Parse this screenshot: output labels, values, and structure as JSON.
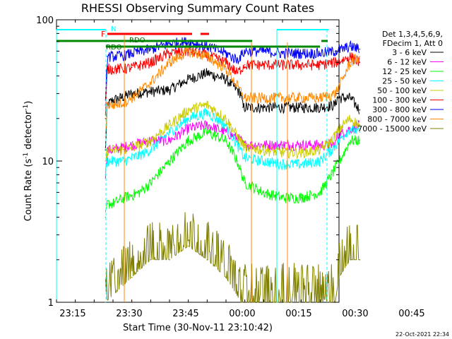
{
  "chart_data": {
    "type": "line",
    "title": "RHESSI Observing Summary Count Rates",
    "xlabel": "Start Time (30-Nov-11 23:10:42)",
    "ylabel_main": "Count Rate (s",
    "ylabel_sup1": "-1",
    "ylabel_mid": " detector",
    "ylabel_sup2": "-1",
    "ylabel_end": ")",
    "yscale": "log",
    "ylim": [
      1,
      100
    ],
    "xlim_minutes": [
      0,
      75
    ],
    "x_tick_labels": [
      {
        "label": "23:15",
        "minute": 4.3
      },
      {
        "label": "23:30",
        "minute": 19.3
      },
      {
        "label": "23:45",
        "minute": 34.3
      },
      {
        "label": "00:00",
        "minute": 49.3
      },
      {
        "label": "00:15",
        "minute": 64.3
      },
      {
        "label": "00:30",
        "minute": 79.3
      },
      {
        "label": "00:45",
        "minute": 94.3
      }
    ],
    "y_tick_labels": [
      {
        "label": "1",
        "value": 1
      },
      {
        "label": "10",
        "value": 10
      },
      {
        "label": "100",
        "value": 100
      }
    ],
    "legend_header": [
      "Det 1,3,4,5,6,9,",
      "FDecim 1, Att 0"
    ],
    "legend_position": "right",
    "series": [
      {
        "name": "3 - 6 keV",
        "color": "#000000",
        "x": [
          13,
          13.5,
          15,
          17,
          20,
          25,
          30,
          35,
          40,
          45,
          49,
          49.5,
          55,
          60,
          65,
          70,
          74,
          74.5,
          78,
          80.5
        ],
        "values": [
          12,
          25,
          27,
          28,
          30,
          31,
          32,
          38,
          42,
          38,
          30,
          24,
          24,
          24,
          24,
          24,
          25,
          28,
          28,
          23
        ]
      },
      {
        "name": "6 - 12 keV",
        "color": "#ff00ff",
        "x": [
          13,
          13.5,
          15,
          20,
          25,
          30,
          35,
          40,
          45,
          49,
          49.5,
          55,
          60,
          65,
          70,
          74,
          74.5,
          78,
          80.5
        ],
        "values": [
          8,
          12,
          12,
          13,
          14,
          14,
          17,
          18,
          16,
          14,
          13,
          13,
          13,
          13,
          13,
          13,
          15,
          17,
          18
        ]
      },
      {
        "name": "12 - 25 keV",
        "color": "#00ff00",
        "x": [
          13,
          13.5,
          15,
          18,
          22,
          25,
          30,
          35,
          40,
          45,
          48,
          50,
          55,
          60,
          65,
          70,
          73,
          76,
          78,
          80.5
        ],
        "values": [
          4,
          5,
          5,
          5.5,
          6,
          7,
          10,
          14,
          16,
          14,
          10,
          7,
          6,
          5.5,
          5.5,
          6,
          8,
          11,
          14,
          14
        ]
      },
      {
        "name": "25 - 50 keV",
        "color": "#00ffff",
        "x": [
          13,
          13.5,
          15,
          18,
          22,
          25,
          30,
          35,
          40,
          45,
          48,
          50,
          55,
          60,
          65,
          70,
          73,
          76,
          78,
          80.5
        ],
        "values": [
          8,
          10,
          10,
          10,
          11,
          12,
          16,
          20,
          22,
          18,
          13,
          10.5,
          10,
          9.5,
          9.5,
          10,
          12,
          15,
          17,
          16
        ]
      },
      {
        "name": "50 - 100 keV",
        "color": "#cccc00",
        "x": [
          13,
          13.5,
          15,
          18,
          22,
          25,
          30,
          35,
          40,
          45,
          48,
          50,
          55,
          60,
          65,
          70,
          73,
          76,
          78,
          80.5
        ],
        "values": [
          10,
          12,
          12,
          12,
          13,
          14,
          18,
          23,
          25,
          20,
          15,
          12.5,
          12,
          11.5,
          11.5,
          12,
          14,
          18,
          20,
          18
        ]
      },
      {
        "name": "100 - 300 keV",
        "color": "#ff0000",
        "x": [
          13,
          13.5,
          15,
          18,
          20,
          25,
          30,
          35,
          40,
          45,
          48,
          50,
          55,
          60,
          65,
          70,
          74,
          76,
          78,
          80.5
        ],
        "values": [
          20,
          45,
          45,
          45,
          46,
          50,
          58,
          60,
          56,
          50,
          42,
          48,
          48,
          48,
          48,
          48,
          50,
          52,
          55,
          50
        ]
      },
      {
        "name": "300 - 800 keV",
        "color": "#0000ff",
        "x": [
          13,
          13.5,
          15,
          18,
          20,
          25,
          30,
          35,
          40,
          45,
          48,
          50,
          55,
          60,
          65,
          70,
          74,
          76,
          78,
          80.5
        ],
        "values": [
          25,
          55,
          55,
          56,
          58,
          62,
          68,
          70,
          65,
          58,
          52,
          60,
          60,
          58,
          58,
          58,
          60,
          62,
          65,
          62
        ]
      },
      {
        "name": "800 - 7000 keV",
        "color": "#ff8800",
        "x": [
          13,
          13.5,
          15,
          18,
          20,
          25,
          30,
          35,
          40,
          45,
          48,
          50,
          55,
          60,
          65,
          70,
          74,
          76,
          78,
          80.5
        ],
        "values": [
          15,
          25,
          25,
          26,
          28,
          36,
          50,
          60,
          55,
          45,
          34,
          28,
          28,
          28,
          28,
          28,
          30,
          38,
          50,
          55
        ]
      },
      {
        "name": "7000 - 15000 keV",
        "color": "#808000",
        "x": [
          13,
          20,
          25,
          30,
          35,
          40,
          45,
          49,
          50,
          74,
          75,
          78,
          80.5
        ],
        "values": [
          1,
          1.5,
          2,
          2,
          2.5,
          2,
          1.5,
          1,
          1,
          1,
          1.5,
          2,
          2
        ]
      }
    ],
    "flag_labels": [
      {
        "text": "F",
        "color": "#ff0000"
      },
      {
        "text": "N",
        "color": "#00ffff"
      },
      {
        "text": "RDO",
        "color": "#006600"
      },
      {
        "text": "RDO",
        "color": "#006600"
      }
    ],
    "footer_date": "22-Oct-2021 22:34"
  }
}
